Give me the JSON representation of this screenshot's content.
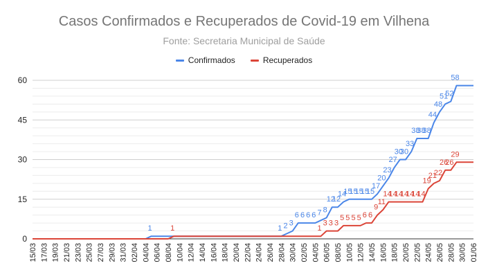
{
  "chart_data": {
    "type": "line",
    "title": "Casos Confirmados e Recuperados de Covid-19 em Vilhena",
    "subtitle": "Fonte: Secretaria Municipal de Saúde",
    "xlabel": "",
    "ylabel": "",
    "ylim": [
      0,
      60
    ],
    "yticks": [
      0,
      15,
      30,
      45,
      60
    ],
    "grid": true,
    "legend_position": "top",
    "x_start": "2020-03-15",
    "x_end": "2020-06-01",
    "x_tick_labels": [
      "15/03",
      "17/03",
      "19/03",
      "21/03",
      "23/03",
      "25/03",
      "27/03",
      "29/03",
      "31/03",
      "02/04",
      "04/04",
      "06/04",
      "08/04",
      "10/04",
      "12/04",
      "14/04",
      "16/04",
      "18/04",
      "20/04",
      "22/04",
      "24/04",
      "26/04",
      "28/04",
      "30/04",
      "02/05",
      "04/05",
      "06/05",
      "08/05",
      "10/05",
      "12/05",
      "14/05",
      "16/05",
      "18/05",
      "20/05",
      "22/05",
      "24/05",
      "26/05",
      "28/05",
      "30/05",
      "01/06"
    ],
    "series": [
      {
        "name": "Confirmados",
        "color": "#4a86e8",
        "points": [
          [
            "15/03",
            0
          ],
          [
            "04/04",
            0
          ],
          [
            "05/04",
            1
          ],
          [
            "28/04",
            1
          ],
          [
            "29/04",
            2
          ],
          [
            "30/04",
            3
          ],
          [
            "01/05",
            6
          ],
          [
            "02/05",
            6
          ],
          [
            "03/05",
            6
          ],
          [
            "04/05",
            6
          ],
          [
            "05/05",
            7
          ],
          [
            "06/05",
            8
          ],
          [
            "07/05",
            12
          ],
          [
            "08/05",
            12
          ],
          [
            "09/05",
            14
          ],
          [
            "10/05",
            15
          ],
          [
            "11/05",
            15
          ],
          [
            "12/05",
            15
          ],
          [
            "13/05",
            15
          ],
          [
            "14/05",
            15
          ],
          [
            "15/05",
            17
          ],
          [
            "16/05",
            20
          ],
          [
            "17/05",
            23
          ],
          [
            "18/05",
            27
          ],
          [
            "19/05",
            30
          ],
          [
            "20/05",
            30
          ],
          [
            "21/05",
            33
          ],
          [
            "22/05",
            38
          ],
          [
            "23/05",
            38
          ],
          [
            "24/05",
            38
          ],
          [
            "25/05",
            44
          ],
          [
            "26/05",
            48
          ],
          [
            "27/05",
            51
          ],
          [
            "28/05",
            52
          ],
          [
            "29/05",
            58
          ],
          [
            "01/06",
            58
          ]
        ]
      },
      {
        "name": "Recuperados",
        "color": "#db4437",
        "points": [
          [
            "15/03",
            0
          ],
          [
            "08/04",
            0
          ],
          [
            "09/04",
            1
          ],
          [
            "05/05",
            1
          ],
          [
            "06/05",
            3
          ],
          [
            "07/05",
            3
          ],
          [
            "08/05",
            3
          ],
          [
            "09/05",
            5
          ],
          [
            "10/05",
            5
          ],
          [
            "11/05",
            5
          ],
          [
            "12/05",
            5
          ],
          [
            "13/05",
            6
          ],
          [
            "14/05",
            6
          ],
          [
            "15/05",
            9
          ],
          [
            "16/05",
            11
          ],
          [
            "17/05",
            14
          ],
          [
            "18/05",
            14
          ],
          [
            "19/05",
            14
          ],
          [
            "20/05",
            14
          ],
          [
            "21/05",
            14
          ],
          [
            "22/05",
            14
          ],
          [
            "23/05",
            14
          ],
          [
            "24/05",
            19
          ],
          [
            "25/05",
            21
          ],
          [
            "26/05",
            22
          ],
          [
            "27/05",
            26
          ],
          [
            "28/05",
            26
          ],
          [
            "29/05",
            29
          ],
          [
            "01/06",
            29
          ]
        ]
      }
    ]
  }
}
